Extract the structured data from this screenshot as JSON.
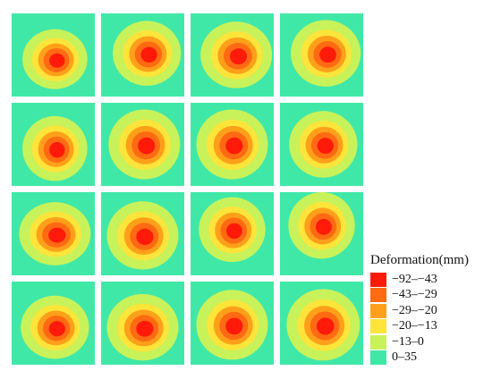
{
  "legend": {
    "title": "Deformation(mm)",
    "classes": [
      {
        "label": "−92–−43",
        "color": "#ff1a0a"
      },
      {
        "label": "−43–−29",
        "color": "#ff6a12"
      },
      {
        "label": "−29–−20",
        "color": "#ffa01a"
      },
      {
        "label": "−20–−13",
        "color": "#ffe43a"
      },
      {
        "label": "−13–0",
        "color": "#c8f25a"
      },
      {
        "label": "0–35",
        "color": "#40e8a8"
      }
    ]
  },
  "maps": [
    {
      "peak_class": 0
    },
    {
      "peak_class": 0
    },
    {
      "peak_class": 0
    },
    {
      "peak_class": 0
    },
    {
      "peak_class": 0
    },
    {
      "peak_class": 0
    },
    {
      "peak_class": 0
    },
    {
      "peak_class": 0
    },
    {
      "peak_class": 0
    },
    {
      "peak_class": 0
    },
    {
      "peak_class": 0
    },
    {
      "peak_class": 0
    },
    {
      "peak_class": 0
    },
    {
      "peak_class": 0
    },
    {
      "peak_class": 0
    },
    {
      "peak_class": 0
    }
  ]
}
